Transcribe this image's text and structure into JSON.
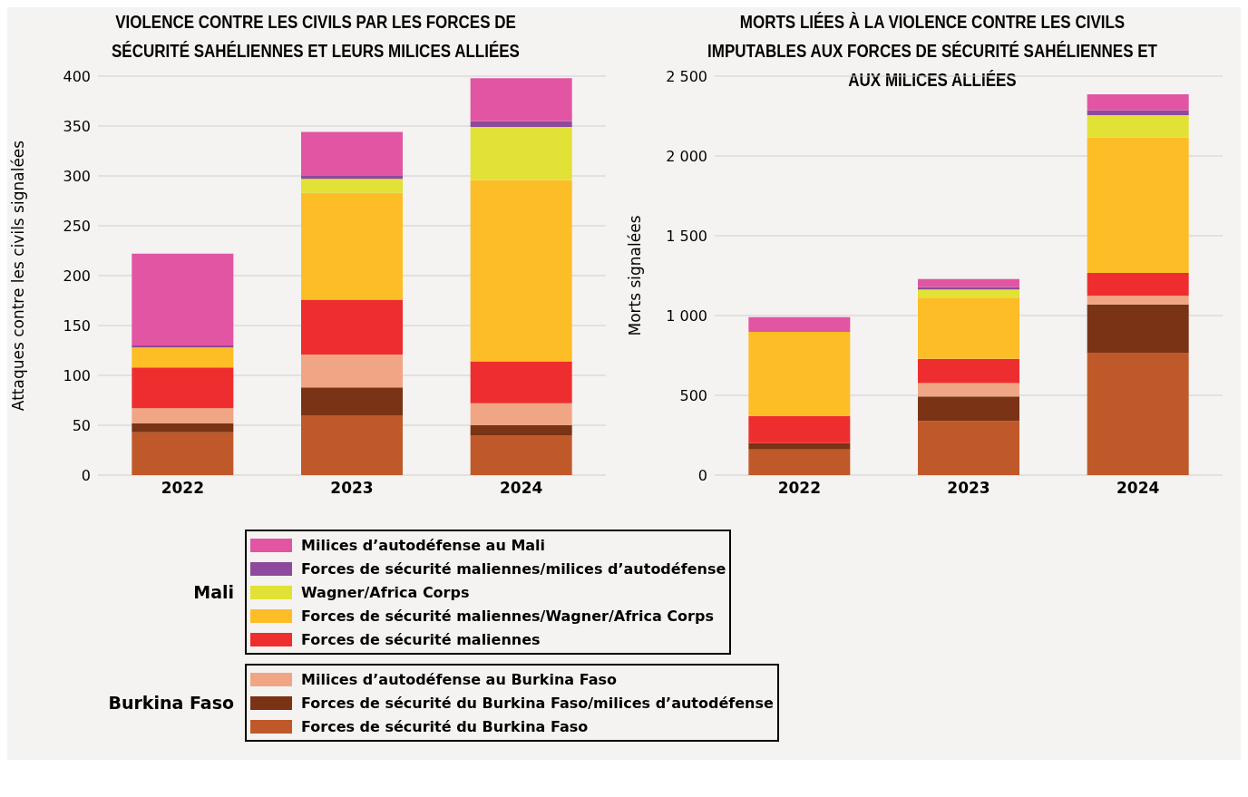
{
  "chart_data": [
    {
      "type": "bar",
      "stacked": true,
      "title": "VIOLENCE CONTRE LES CIVILS PAR LES FORCES DE SÉCURITÉ SAHÉLIENNES ET LEURS MILICES ALLIÉES",
      "ylabel": "Attaques contre les civils signalées",
      "categories": [
        "2022",
        "2023",
        "2024"
      ],
      "ylim": [
        0,
        400
      ],
      "yticks": [
        0,
        50,
        100,
        150,
        200,
        250,
        300,
        350,
        400
      ],
      "grid": "y",
      "legend": "bottom",
      "annotations": [
        "Mali",
        "Burkina Faso"
      ],
      "series": [
        {
          "name": "Forces de sécurité du Burkina Faso",
          "color": "#c0592a",
          "values": [
            43,
            60,
            40
          ]
        },
        {
          "name": "Forces de sécurité du Burkina Faso/milices d’autodéfense",
          "color": "#7a3315",
          "values": [
            9,
            28,
            10
          ]
        },
        {
          "name": "Milices d’autodéfense au Burkina Faso",
          "color": "#f0a685",
          "values": [
            15,
            33,
            22
          ]
        },
        {
          "name": "Forces de sécurité maliennes",
          "color": "#ee2e2e",
          "values": [
            41,
            55,
            42
          ]
        },
        {
          "name": "Forces de sécurité maliennes/Wagner/Africa Corps",
          "color": "#fdbd27",
          "values": [
            20,
            107,
            182
          ]
        },
        {
          "name": "Wagner/Africa Corps",
          "color": "#e1e136",
          "values": [
            0,
            14,
            53
          ]
        },
        {
          "name": "Forces de sécurité maliennes/milices d’autodéfense",
          "color": "#8e4a9c",
          "values": [
            2,
            3,
            6
          ]
        },
        {
          "name": "Milices d’autodéfense au Mali",
          "color": "#e155a3",
          "values": [
            92,
            44,
            43
          ]
        }
      ]
    },
    {
      "type": "bar",
      "stacked": true,
      "title": "MORTS LIÉES À LA VIOLENCE CONTRE LES CIVILS IMPUTABLES AUX FORCES DE SÉCURITÉ SAHÉLIENNES ET AUX MILICES ALLIÉES",
      "ylabel": "Morts signalées",
      "categories": [
        "2022",
        "2023",
        "2024"
      ],
      "ylim": [
        0,
        2500
      ],
      "yticks": [
        0,
        500,
        {
          "value": 1000,
          "label": "1 000"
        },
        {
          "value": 1500,
          "label": "1 500"
        },
        {
          "value": 2000,
          "label": "2 000"
        },
        {
          "value": 2500,
          "label": "2 500"
        }
      ],
      "grid": "y",
      "series": [
        {
          "color": "#c0592a",
          "values": [
            160,
            338,
            767
          ]
        },
        {
          "color": "#7a3315",
          "values": [
            40,
            155,
            302
          ]
        },
        {
          "color": "#f0a685",
          "values": [
            0,
            83,
            55
          ]
        },
        {
          "color": "#ee2e2e",
          "values": [
            171,
            153,
            143
          ]
        },
        {
          "color": "#fdbd27",
          "values": [
            527,
            383,
            850
          ]
        },
        {
          "color": "#e1e136",
          "values": [
            0,
            52,
            138
          ]
        },
        {
          "color": "#8e4a9c",
          "values": [
            0,
            15,
            31
          ]
        },
        {
          "color": "#e155a3",
          "values": [
            92,
            50,
            100
          ]
        }
      ]
    }
  ]
}
